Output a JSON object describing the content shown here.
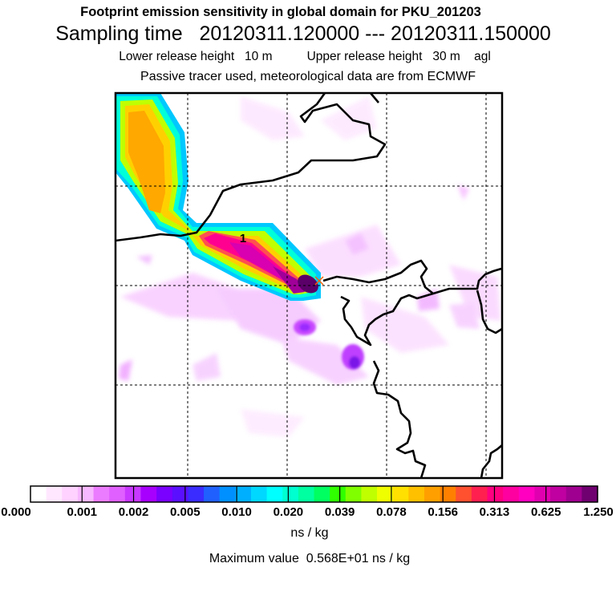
{
  "title": "Footprint emission sensitivity in global domain for PKU_201203",
  "sampling": "Sampling time   20120311.120000 --- 20120311.150000",
  "release": "Lower release height   10 m          Upper release height   30 m    agl",
  "passive": "Passive tracer used, meteorological data are from ECMWF",
  "map": {
    "plume_label": "1",
    "source_marker": "release-point-x"
  },
  "colorbar": {
    "ticks": [
      "0.000",
      "0.001",
      "0.002",
      "0.005",
      "0.010",
      "0.020",
      "0.039",
      "0.078",
      "0.156",
      "0.313",
      "0.625",
      "1.250"
    ],
    "colors": [
      "#ffffff",
      "#ffe8ff",
      "#ffd2ff",
      "#f8b8ff",
      "#ec7cff",
      "#e060ff",
      "#c838ff",
      "#a800ff",
      "#7a00ff",
      "#5a10ff",
      "#3a2cff",
      "#2060ff",
      "#0090ff",
      "#00b0ff",
      "#00d8ff",
      "#00ffff",
      "#00ffd0",
      "#00ffa0",
      "#00ff60",
      "#30ff00",
      "#80ff00",
      "#c0ff00",
      "#f0ff00",
      "#ffe000",
      "#ffc000",
      "#ffa000",
      "#ff8000",
      "#ff5030",
      "#ff2050",
      "#ff0080",
      "#ff00a0",
      "#ff00c0",
      "#e000b0",
      "#c000a0",
      "#a00090",
      "#700070"
    ]
  },
  "units": "ns / kg",
  "max_value": "Maximum value  0.568E+01 ns / kg"
}
